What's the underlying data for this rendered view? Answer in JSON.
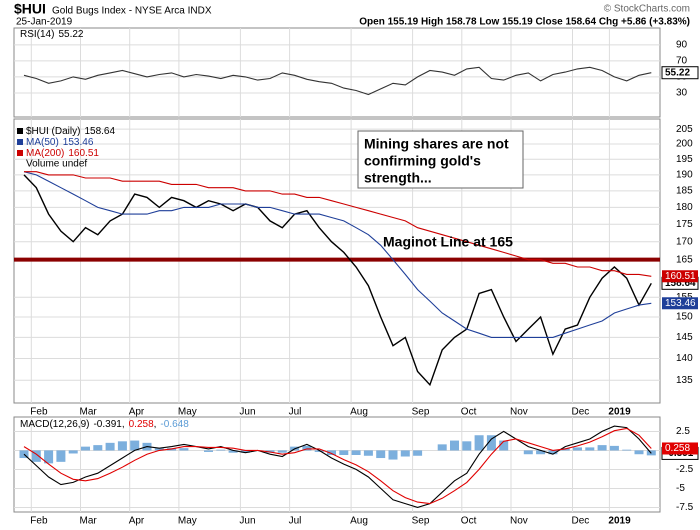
{
  "header": {
    "symbol": "$HUI",
    "name": "Gold Bugs Index - NYSE Arca INDX",
    "date": "25-Jan-2019",
    "quote": "Open 155.19  High 158.78  Low 155.19  Close 158.64  Chg +5.86 (+3.83%)"
  },
  "watermark": "© StockCharts.com",
  "chart_data": [
    {
      "type": "line",
      "ylim": [
        0,
        111
      ],
      "yticks": [
        90,
        70,
        50,
        30
      ],
      "grid": true,
      "series": [
        {
          "name": "RSI(14)",
          "color": "#333333",
          "values": [
            52,
            48,
            42,
            45,
            50,
            47,
            52,
            55,
            58,
            54,
            50,
            53,
            55,
            50,
            53,
            51,
            48,
            52,
            50,
            46,
            48,
            55,
            52,
            47,
            44,
            42,
            36,
            33,
            28,
            35,
            42,
            40,
            50,
            58,
            56,
            52,
            60,
            62,
            48,
            46,
            52,
            55,
            45,
            53,
            56,
            60,
            62,
            58,
            50,
            45,
            52,
            55.22
          ]
        }
      ]
    },
    {
      "type": "line",
      "scale": "log",
      "ylim": [
        130,
        208.5
      ],
      "yticks": [
        205,
        200,
        195,
        190,
        185,
        180,
        175,
        170,
        165,
        155,
        150,
        145,
        140,
        135
      ],
      "grid": true,
      "categories": [
        null,
        "Feb",
        null,
        null,
        null,
        "Mar",
        null,
        null,
        null,
        "Apr",
        null,
        null,
        null,
        "May",
        null,
        null,
        null,
        null,
        "Jun",
        null,
        null,
        null,
        "Jul",
        null,
        null,
        null,
        null,
        "Aug",
        null,
        null,
        null,
        null,
        "Sep",
        null,
        null,
        null,
        "Oct",
        null,
        null,
        null,
        "Nov",
        null,
        null,
        null,
        null,
        "Dec",
        null,
        null,
        "2019",
        null,
        null,
        null
      ],
      "series": [
        {
          "name": "$HUI (Daily)",
          "color": "#000000",
          "values": [
            190,
            186,
            178,
            173,
            170,
            174,
            172,
            176,
            178,
            184,
            183,
            180,
            183,
            182,
            180,
            182,
            181,
            179,
            181,
            180,
            176,
            174,
            178,
            179,
            174,
            170,
            167,
            163,
            158,
            150,
            143,
            145,
            137,
            134,
            142,
            145,
            147,
            156,
            157,
            150,
            144,
            147,
            150,
            141,
            147,
            148,
            155,
            160,
            163,
            160,
            153,
            158.64
          ]
        },
        {
          "name": "MA(50)",
          "color": "#1f3f99",
          "values": [
            191,
            190,
            188,
            186,
            184,
            182,
            180,
            179,
            178,
            178,
            178,
            179,
            179,
            180,
            180,
            180,
            181,
            181,
            181,
            180,
            180,
            179,
            178,
            178,
            178,
            177,
            176,
            174,
            172,
            169,
            165,
            161,
            157,
            154,
            151,
            149,
            147,
            146,
            145,
            145,
            145,
            145,
            145,
            145,
            146,
            147,
            148,
            149,
            151,
            152,
            153,
            153.46
          ]
        },
        {
          "name": "MA(200)",
          "color": "#cc0000",
          "values": [
            191,
            191,
            190,
            190,
            190,
            189,
            189,
            189,
            188,
            188,
            188,
            188,
            187,
            187,
            187,
            186,
            186,
            186,
            185,
            185,
            185,
            184,
            184,
            183,
            183,
            182,
            181,
            180,
            179,
            178,
            177,
            176,
            174,
            173,
            172,
            171,
            170,
            169,
            168,
            167,
            166,
            165,
            165,
            164,
            164,
            163,
            163,
            162,
            162,
            161,
            161,
            160.51
          ]
        }
      ],
      "volume_label": "Volume undef",
      "hline": {
        "value": 165,
        "color": "#8b0000"
      },
      "annotations": [
        {
          "lines": [
            "Mining shares are not",
            "confirming gold's",
            "strength..."
          ]
        },
        {
          "text": "Maginot Line at 165"
        }
      ]
    },
    {
      "type": "line",
      "title": "MACD(12,26,9)",
      "ylim": [
        -8.1,
        4.4
      ],
      "yticks": [
        2.5,
        0,
        -2.5,
        -5,
        -7.5
      ],
      "grid": true,
      "categories": [
        null,
        "Feb",
        null,
        null,
        null,
        "Mar",
        null,
        null,
        null,
        "Apr",
        null,
        null,
        null,
        "May",
        null,
        null,
        null,
        null,
        "Jun",
        null,
        null,
        null,
        "Jul",
        null,
        null,
        null,
        null,
        "Aug",
        null,
        null,
        null,
        null,
        "Sep",
        null,
        null,
        null,
        "Oct",
        null,
        null,
        null,
        "Nov",
        null,
        null,
        null,
        null,
        "Dec",
        null,
        null,
        "2019",
        null,
        null,
        null
      ],
      "series": [
        {
          "type": "bar",
          "color": "#5b9bd5",
          "values": [
            -1,
            -1.5,
            -1.7,
            -1.5,
            -0.4,
            0.5,
            0.7,
            1,
            1.2,
            1.3,
            1,
            0.3,
            0.3,
            0.3,
            0,
            -0.2,
            0.1,
            -0.3,
            -0.3,
            0,
            -0.3,
            -0.3,
            0.5,
            0.6,
            -0.2,
            -0.6,
            -0.6,
            -0.6,
            -0.7,
            -1,
            -1.2,
            -0.8,
            -0.7,
            0,
            0.8,
            1.3,
            1.2,
            2,
            2,
            1.3,
            0,
            -0.5,
            -0.5,
            -0.5,
            0.3,
            0.4,
            0.4,
            0.7,
            0.6,
            0.1,
            -0.5,
            -0.648
          ]
        },
        {
          "color": "#000000",
          "values": [
            -0.5,
            -2,
            -3.5,
            -4.5,
            -4.2,
            -3.5,
            -3,
            -2,
            -1,
            0,
            0.5,
            0.3,
            0.5,
            0.8,
            0.5,
            0.2,
            0.5,
            0,
            -0.3,
            0,
            -0.5,
            -0.8,
            0.2,
            0.8,
            0,
            -1,
            -1.8,
            -2.5,
            -3.5,
            -5,
            -6.5,
            -7,
            -7.5,
            -7,
            -5.5,
            -4,
            -3,
            -0.5,
            1.5,
            2.5,
            1.5,
            0.5,
            0,
            -0.5,
            0.5,
            1,
            1.5,
            2.5,
            3.2,
            3,
            1.5,
            -0.391
          ]
        },
        {
          "color": "#e00000",
          "values": [
            0.5,
            -0.5,
            -1.8,
            -3,
            -3.8,
            -4,
            -3.7,
            -3,
            -2.2,
            -1.3,
            -0.5,
            0,
            0.2,
            0.5,
            0.5,
            0.4,
            0.4,
            0.3,
            0,
            0,
            -0.2,
            -0.5,
            -0.3,
            0.2,
            0.2,
            -0.4,
            -1.2,
            -1.9,
            -2.8,
            -4,
            -5.3,
            -6.2,
            -6.8,
            -7,
            -6.3,
            -5.3,
            -4.2,
            -2.5,
            -0.5,
            1.2,
            1.5,
            1,
            0.5,
            0,
            0.2,
            0.6,
            1.1,
            1.8,
            2.6,
            2.9,
            2,
            0.258
          ]
        }
      ]
    }
  ]
}
